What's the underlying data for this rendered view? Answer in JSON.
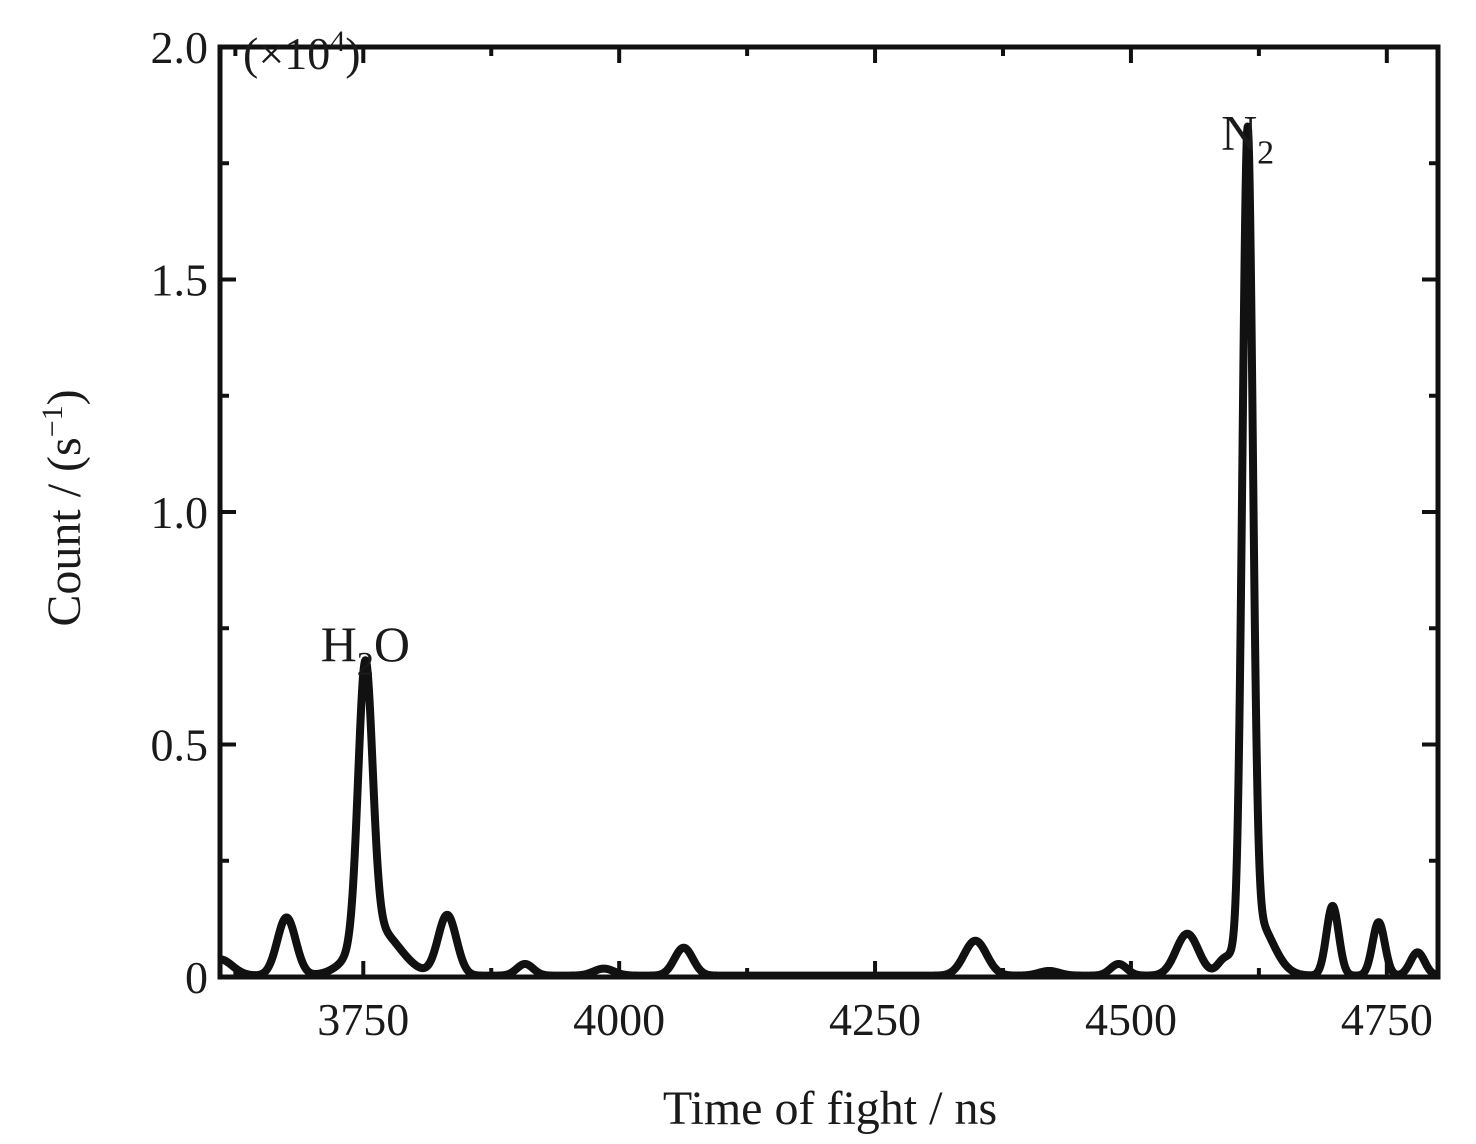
{
  "chart_data": {
    "type": "line",
    "title": "",
    "xlabel": "Time of fight / ns",
    "ylabel_prefix": "Count / (s",
    "ylabel_exponent": "−1",
    "ylabel_suffix": ")",
    "y_multiplier_open": "(×10",
    "y_multiplier_exponent": "4",
    "y_multiplier_close": ")",
    "xlim": [
      3610,
      4800
    ],
    "ylim": [
      0,
      2.0
    ],
    "x_ticks": [
      3750,
      4000,
      4250,
      4500,
      4750
    ],
    "x_tick_labels": [
      "3750",
      "4000",
      "4250",
      "4500",
      "4750"
    ],
    "y_ticks": [
      0,
      0.5,
      1.0,
      1.5,
      2.0
    ],
    "y_tick_labels": [
      "0",
      "0.5",
      "1.0",
      "1.5",
      "2.0"
    ],
    "grid": false,
    "line_color": "#111111",
    "annotations": [
      {
        "base": "H",
        "subscript": "2",
        "rest": "O",
        "x": 3752,
        "y": 0.68
      },
      {
        "base": "N",
        "subscript": "2",
        "rest": "",
        "x": 4614,
        "y": 1.78
      }
    ],
    "series": [
      {
        "peaks": [
          {
            "x": 3675,
            "height": 0.125,
            "width": 9
          },
          {
            "x": 3752,
            "height": 0.59,
            "width": 7
          },
          {
            "x": 3763,
            "height": 0.1,
            "width": 22
          },
          {
            "x": 3832,
            "height": 0.13,
            "width": 9
          },
          {
            "x": 3908,
            "height": 0.025,
            "width": 8
          },
          {
            "x": 3985,
            "height": 0.015,
            "width": 10
          },
          {
            "x": 4063,
            "height": 0.06,
            "width": 9
          },
          {
            "x": 4348,
            "height": 0.075,
            "width": 11
          },
          {
            "x": 4420,
            "height": 0.01,
            "width": 10
          },
          {
            "x": 4488,
            "height": 0.025,
            "width": 8
          },
          {
            "x": 4555,
            "height": 0.09,
            "width": 11
          },
          {
            "x": 4590,
            "height": 0.02,
            "width": 6
          },
          {
            "x": 4614,
            "height": 1.72,
            "width": 5
          },
          {
            "x": 4622,
            "height": 0.12,
            "width": 16
          },
          {
            "x": 4697,
            "height": 0.15,
            "width": 6
          },
          {
            "x": 4742,
            "height": 0.115,
            "width": 6
          },
          {
            "x": 4780,
            "height": 0.05,
            "width": 7
          }
        ],
        "baseline": 0.003,
        "start_edge": {
          "x": 3610,
          "height": 0.035,
          "width": 12
        }
      }
    ]
  }
}
